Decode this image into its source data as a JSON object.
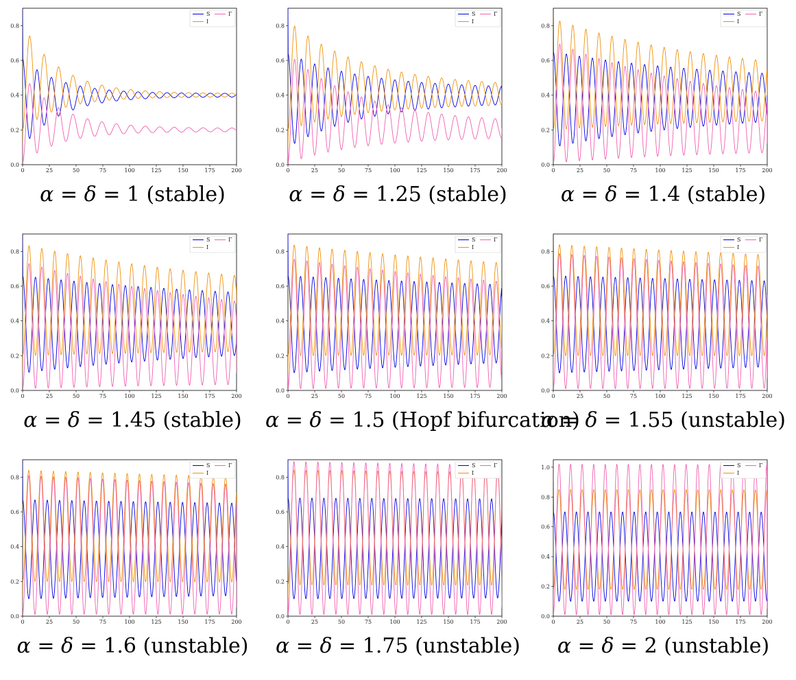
{
  "figure": {
    "series_names": [
      "S",
      "I",
      "Γ"
    ],
    "colors": {
      "S": "#0000e0",
      "I": "#f0900a",
      "Γ": "#f060b0"
    },
    "greek_alpha": "α",
    "greek_delta": "δ"
  },
  "chart_data": [
    {
      "type": "line",
      "caption_value": "1",
      "caption_note": "(stable)",
      "xlim": [
        0,
        200
      ],
      "ylim": [
        0,
        0.9
      ],
      "xticks": [
        0,
        25,
        50,
        75,
        100,
        125,
        150,
        175,
        200
      ],
      "yticks": [
        0.0,
        0.2,
        0.4,
        0.6,
        0.8
      ],
      "legend_position": "top-right",
      "grid": false,
      "series": [
        {
          "name": "S",
          "shape": {
            "start": 0.9,
            "period": 13.5,
            "peak_first": 0.61,
            "trough_first": 0.1,
            "peak_end": 0.41,
            "trough_end": 0.39,
            "decay": 35,
            "end_value": 0.4
          }
        },
        {
          "name": "I",
          "shape": {
            "start": 0.1,
            "period": 13.5,
            "peak_first": 0.81,
            "trough_first": 0.2,
            "peak_end": 0.41,
            "trough_end": 0.39,
            "decay": 35,
            "end_value": 0.4
          }
        },
        {
          "name": "Γ",
          "shape": {
            "start": 0.1,
            "period": 13.5,
            "peak_first": 0.52,
            "trough_first": 0.01,
            "peak_end": 0.21,
            "trough_end": 0.19,
            "decay": 35,
            "end_value": 0.2
          }
        }
      ]
    },
    {
      "type": "line",
      "caption_value": "1.25",
      "caption_note": "(stable)",
      "xlim": [
        0,
        200
      ],
      "ylim": [
        0,
        0.9
      ],
      "xticks": [
        0,
        25,
        50,
        75,
        100,
        125,
        150,
        175,
        200
      ],
      "yticks": [
        0.0,
        0.2,
        0.4,
        0.6,
        0.8
      ],
      "legend_position": "top-right",
      "grid": false,
      "series": [
        {
          "name": "S",
          "shape": {
            "start": 0.9,
            "period": 12.5,
            "peak_first": 0.64,
            "trough_first": 0.1,
            "peak_end": 0.44,
            "trough_end": 0.36,
            "decay": 70,
            "end_value": 0.42
          }
        },
        {
          "name": "I",
          "shape": {
            "start": 0.1,
            "period": 12.5,
            "peak_first": 0.83,
            "trough_first": 0.2,
            "peak_end": 0.45,
            "trough_end": 0.35,
            "decay": 70,
            "end_value": 0.37
          }
        },
        {
          "name": "Γ",
          "shape": {
            "start": 0.1,
            "period": 12.5,
            "peak_first": 0.64,
            "trough_first": 0.01,
            "peak_end": 0.24,
            "trough_end": 0.16,
            "decay": 70,
            "end_value": 0.21
          }
        }
      ]
    },
    {
      "type": "line",
      "caption_value": "1.4",
      "caption_note": "(stable)",
      "xlim": [
        0,
        200
      ],
      "ylim": [
        0,
        0.9
      ],
      "xticks": [
        0,
        25,
        50,
        75,
        100,
        125,
        150,
        175,
        200
      ],
      "yticks": [
        0.0,
        0.2,
        0.4,
        0.6,
        0.8
      ],
      "legend_position": "top-right",
      "grid": false,
      "series": [
        {
          "name": "S",
          "shape": {
            "start": 0.9,
            "period": 12.2,
            "peak_first": 0.65,
            "trough_first": 0.1,
            "peak_end": 0.48,
            "trough_end": 0.3,
            "decay": 150,
            "end_value": 0.4
          }
        },
        {
          "name": "I",
          "shape": {
            "start": 0.1,
            "period": 12.2,
            "peak_first": 0.84,
            "trough_first": 0.2,
            "peak_end": 0.51,
            "trough_end": 0.27,
            "decay": 150,
            "end_value": 0.4
          }
        },
        {
          "name": "Γ",
          "shape": {
            "start": 0.1,
            "period": 12.2,
            "peak_first": 0.71,
            "trough_first": 0.01,
            "peak_end": 0.31,
            "trough_end": 0.09,
            "decay": 150,
            "end_value": 0.12
          }
        }
      ]
    },
    {
      "type": "line",
      "caption_value": "1.45",
      "caption_note": "(stable)",
      "xlim": [
        0,
        200
      ],
      "ylim": [
        0,
        0.9
      ],
      "xticks": [
        0,
        25,
        50,
        75,
        100,
        125,
        150,
        175,
        200
      ],
      "yticks": [
        0.0,
        0.2,
        0.4,
        0.6,
        0.8
      ],
      "legend_position": "top-right",
      "grid": false,
      "series": [
        {
          "name": "S",
          "shape": {
            "start": 0.9,
            "period": 12.0,
            "peak_first": 0.66,
            "trough_first": 0.1,
            "peak_end": 0.5,
            "trough_end": 0.27,
            "decay": 220,
            "end_value": 0.37
          }
        },
        {
          "name": "I",
          "shape": {
            "start": 0.1,
            "period": 12.0,
            "peak_first": 0.84,
            "trough_first": 0.2,
            "peak_end": 0.54,
            "trough_end": 0.24,
            "decay": 220,
            "end_value": 0.5
          }
        },
        {
          "name": "Γ",
          "shape": {
            "start": 0.1,
            "period": 12.0,
            "peak_first": 0.74,
            "trough_first": 0.01,
            "peak_end": 0.36,
            "trough_end": 0.05,
            "decay": 220,
            "end_value": 0.1
          }
        }
      ]
    },
    {
      "type": "line",
      "caption_value": "1.5",
      "caption_note": "(Hopf bifurcation)",
      "xlim": [
        0,
        200
      ],
      "ylim": [
        0,
        0.9
      ],
      "xticks": [
        0,
        25,
        50,
        75,
        100,
        125,
        150,
        175,
        200
      ],
      "yticks": [
        0.0,
        0.2,
        0.4,
        0.6,
        0.8
      ],
      "legend_position": "top-right",
      "grid": false,
      "series": [
        {
          "name": "S",
          "shape": {
            "start": 0.9,
            "period": 11.8,
            "peak_first": 0.66,
            "trough_first": 0.1,
            "peak_end": 0.53,
            "trough_end": 0.25,
            "decay": 400,
            "end_value": 0.35
          }
        },
        {
          "name": "I",
          "shape": {
            "start": 0.1,
            "period": 11.8,
            "peak_first": 0.84,
            "trough_first": 0.2,
            "peak_end": 0.57,
            "trough_end": 0.21,
            "decay": 400,
            "end_value": 0.54
          }
        },
        {
          "name": "Γ",
          "shape": {
            "start": 0.1,
            "period": 11.8,
            "peak_first": 0.76,
            "trough_first": 0.01,
            "peak_end": 0.42,
            "trough_end": 0.03,
            "decay": 400,
            "end_value": 0.09
          }
        }
      ]
    },
    {
      "type": "line",
      "caption_value": "1.55",
      "caption_note": "(unstable)",
      "xlim": [
        0,
        200
      ],
      "ylim": [
        0,
        0.9
      ],
      "xticks": [
        0,
        25,
        50,
        75,
        100,
        125,
        150,
        175,
        200
      ],
      "yticks": [
        0.0,
        0.2,
        0.4,
        0.6,
        0.8
      ],
      "legend_position": "top-right",
      "grid": false,
      "series": [
        {
          "name": "S",
          "shape": {
            "start": 0.9,
            "period": 11.6,
            "peak_first": 0.66,
            "trough_first": 0.1,
            "peak_end": 0.54,
            "trough_end": 0.24,
            "decay": 700,
            "end_value": 0.35
          }
        },
        {
          "name": "I",
          "shape": {
            "start": 0.1,
            "period": 11.6,
            "peak_first": 0.84,
            "trough_first": 0.2,
            "peak_end": 0.6,
            "trough_end": 0.2,
            "decay": 700,
            "end_value": 0.55
          }
        },
        {
          "name": "Γ",
          "shape": {
            "start": 0.1,
            "period": 11.6,
            "peak_first": 0.79,
            "trough_first": 0.01,
            "peak_end": 0.48,
            "trough_end": 0.02,
            "decay": 700,
            "end_value": 0.07
          }
        }
      ]
    },
    {
      "type": "line",
      "caption_value": "1.6",
      "caption_note": "(unstable)",
      "xlim": [
        0,
        200
      ],
      "ylim": [
        0,
        0.9
      ],
      "xticks": [
        0,
        25,
        50,
        75,
        100,
        125,
        150,
        175,
        200
      ],
      "yticks": [
        0.0,
        0.2,
        0.4,
        0.6,
        0.8
      ],
      "legend_position": "top-right",
      "grid": false,
      "series": [
        {
          "name": "S",
          "shape": {
            "start": 0.9,
            "period": 11.5,
            "peak_first": 0.67,
            "trough_first": 0.1,
            "peak_end": 0.56,
            "trough_end": 0.2,
            "decay": 1000,
            "end_value": 0.38
          }
        },
        {
          "name": "I",
          "shape": {
            "start": 0.1,
            "period": 11.5,
            "peak_first": 0.84,
            "trough_first": 0.2,
            "peak_end": 0.63,
            "trough_end": 0.18,
            "decay": 1000,
            "end_value": 0.45
          }
        },
        {
          "name": "Γ",
          "shape": {
            "start": 0.1,
            "period": 11.5,
            "peak_first": 0.81,
            "trough_first": 0.01,
            "peak_end": 0.52,
            "trough_end": 0.02,
            "decay": 1000,
            "end_value": 0.05
          }
        }
      ]
    },
    {
      "type": "line",
      "caption_value": "1.75",
      "caption_note": "(unstable)",
      "xlim": [
        0,
        200
      ],
      "ylim": [
        0,
        0.9
      ],
      "xticks": [
        0,
        25,
        50,
        75,
        100,
        125,
        150,
        175,
        200
      ],
      "yticks": [
        0.0,
        0.2,
        0.4,
        0.6,
        0.8
      ],
      "legend_position": "top-right",
      "grid": false,
      "series": [
        {
          "name": "S",
          "shape": {
            "start": 0.9,
            "period": 11.2,
            "peak_first": 0.68,
            "trough_first": 0.1,
            "peak_end": 0.62,
            "trough_end": 0.15,
            "decay": 2000,
            "end_value": 0.62
          }
        },
        {
          "name": "I",
          "shape": {
            "start": 0.1,
            "period": 11.2,
            "peak_first": 0.84,
            "trough_first": 0.18,
            "peak_end": 0.71,
            "trough_end": 0.16,
            "decay": 2000,
            "end_value": 0.25
          }
        },
        {
          "name": "Γ",
          "shape": {
            "start": 0.1,
            "period": 11.2,
            "peak_first": 0.89,
            "trough_first": 0.01,
            "peak_end": 0.67,
            "trough_end": 0.01,
            "decay": 2000,
            "end_value": 0.05
          }
        }
      ]
    },
    {
      "type": "line",
      "caption_value": "2",
      "caption_note": "(unstable)",
      "xlim": [
        0,
        200
      ],
      "ylim": [
        0,
        1.05
      ],
      "xticks": [
        0,
        25,
        50,
        75,
        100,
        125,
        150,
        175,
        200
      ],
      "yticks": [
        0.0,
        0.2,
        0.4,
        0.6,
        0.8,
        1.0
      ],
      "legend_position": "top-right",
      "grid": false,
      "series": [
        {
          "name": "S",
          "shape": {
            "start": 0.9,
            "period": 10.8,
            "peak_first": 0.7,
            "trough_first": 0.1,
            "peak_end": 0.67,
            "trough_end": 0.12,
            "decay": 5000,
            "end_value": 0.13
          }
        },
        {
          "name": "I",
          "shape": {
            "start": 0.1,
            "period": 10.8,
            "peak_first": 0.85,
            "trough_first": 0.18,
            "peak_end": 0.8,
            "trough_end": 0.17,
            "decay": 5000,
            "end_value": 0.8
          }
        },
        {
          "name": "Γ",
          "shape": {
            "start": 0.1,
            "period": 10.8,
            "peak_first": 1.02,
            "trough_first": 0.01,
            "peak_end": 0.94,
            "trough_end": 0.01,
            "decay": 5000,
            "end_value": 0.05
          }
        }
      ]
    }
  ]
}
